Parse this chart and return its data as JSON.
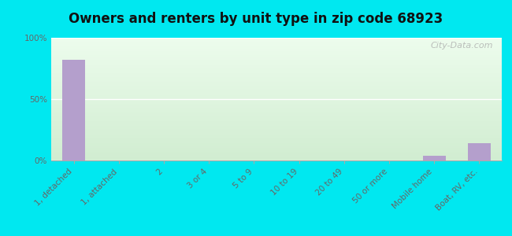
{
  "title": "Owners and renters by unit type in zip code 68923",
  "categories": [
    "1, detached",
    "1, attached",
    "2",
    "3 or 4",
    "5 to 9",
    "10 to 19",
    "20 to 49",
    "50 or more",
    "Mobile home",
    "Boat, RV, etc."
  ],
  "values": [
    82,
    0,
    0,
    0,
    0,
    0,
    0,
    0,
    4,
    14
  ],
  "bar_color": "#b49fcc",
  "bg_outer": "#00e8f0",
  "axis_color": "#aaaaaa",
  "tick_label_color": "#666666",
  "title_color": "#111111",
  "yticks": [
    0,
    50,
    100
  ],
  "ylim": [
    0,
    100
  ],
  "title_fontsize": 12,
  "tick_fontsize": 7.5,
  "watermark": "City-Data.com",
  "grad_top_left": "#ddeedd",
  "grad_top_right": "#eefff8",
  "grad_bottom_left": "#cceecc",
  "grad_bottom_right": "#e8ffe8"
}
